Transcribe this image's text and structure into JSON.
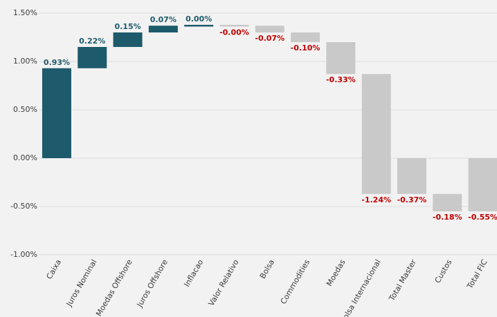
{
  "chart_data": {
    "type": "waterfall",
    "categories": [
      "Caixa",
      "Juros Nominal",
      "Moedas Offshore",
      "Juros Offshore",
      "Inflacao",
      "Valor Relativo",
      "Bolsa",
      "Commodities",
      "Moedas",
      "Bolsa Internacional",
      "Total Master",
      "Custos",
      "Total FIC"
    ],
    "values": [
      0.93,
      0.22,
      0.15,
      0.07,
      0,
      0,
      -0.07,
      -0.1,
      -0.33,
      -1.24,
      -0.37,
      -0.18,
      -0.55
    ],
    "value_labels": [
      "0.93%",
      "0.22%",
      "0.15%",
      "0.07%",
      "0.00%",
      "-0.00%",
      "-0.07%",
      "-0.10%",
      "-0.33%",
      "-1.24%",
      "-0.37%",
      "-0.18%",
      "-0.55%"
    ],
    "measure": [
      "relative",
      "relative",
      "relative",
      "relative",
      "relative",
      "relative",
      "relative",
      "relative",
      "relative",
      "relative",
      "total",
      "relative",
      "total"
    ],
    "colors": [
      "#1d5a6b",
      "#1d5a6b",
      "#1d5a6b",
      "#1d5a6b",
      "#1d5a6b",
      "#c9c9c9",
      "#c9c9c9",
      "#c9c9c9",
      "#c9c9c9",
      "#c9c9c9",
      "#c9c9c9",
      "#c9c9c9",
      "#c9c9c9"
    ],
    "value_label_colors": [
      "#1d5a6b",
      "#1d5a6b",
      "#1d5a6b",
      "#1d5a6b",
      "#1d5a6b",
      "#c00000",
      "#c00000",
      "#c00000",
      "#c00000",
      "#c00000",
      "#c00000",
      "#c00000",
      "#c00000"
    ],
    "ylim": [
      -1.0,
      1.5
    ],
    "yticks": [
      {
        "value": -1.0,
        "label": "-1.00%"
      },
      {
        "value": -0.5,
        "label": "-0.50%"
      },
      {
        "value": 0,
        "label": "0.00%"
      },
      {
        "value": 0.5,
        "label": "0.50%"
      },
      {
        "value": 1.0,
        "label": "1.00%"
      },
      {
        "value": 1.5,
        "label": "1.50%"
      }
    ],
    "grid": true
  }
}
